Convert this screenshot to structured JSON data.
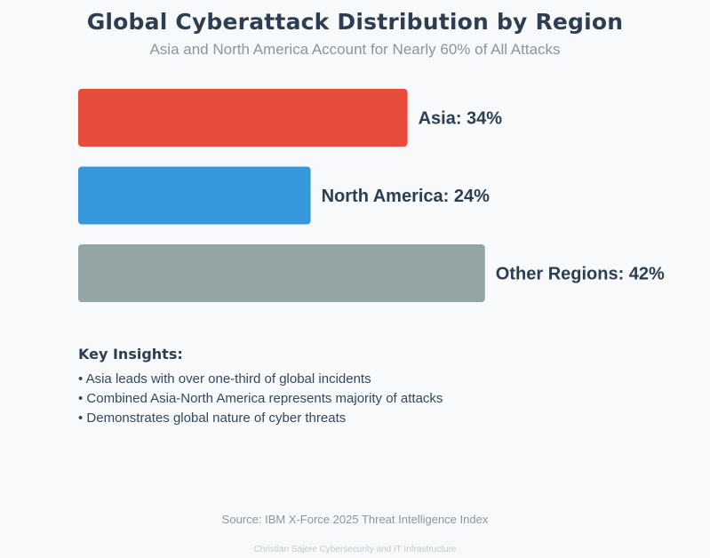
{
  "chart_data": {
    "type": "bar",
    "orientation": "horizontal",
    "title": "Global Cyberattack Distribution by Region",
    "subtitle": "Asia and North America Account for Nearly 60% of All Attacks",
    "categories": [
      "Asia",
      "North America",
      "Other Regions"
    ],
    "values": [
      34,
      24,
      42
    ],
    "labels": [
      "Asia: 34%",
      "North America: 24%",
      "Other Regions: 42%"
    ],
    "colors": [
      "#e74c3c",
      "#3498db",
      "#95a5a6"
    ],
    "unit": "%",
    "grid": false,
    "legend": "none"
  },
  "insights": {
    "heading": "Key Insights:",
    "items": [
      "• Asia leads with over one-third of global incidents",
      "• Combined Asia-North America represents majority of attacks",
      "• Demonstrates global nature of cyber threats"
    ]
  },
  "footer": {
    "source": "Source: IBM X-Force 2025 Threat Intelligence Index",
    "credit": "Christian Sajere Cybersecurity and IT Infrastructure"
  }
}
